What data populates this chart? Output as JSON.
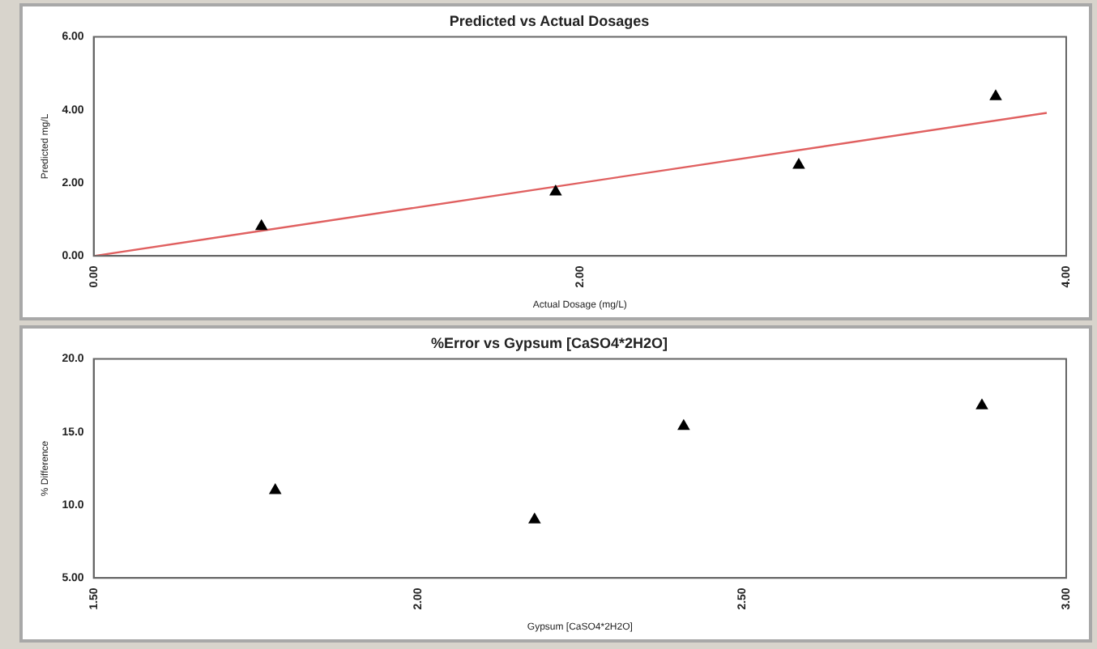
{
  "chart_data": [
    {
      "type": "scatter",
      "title": "Predicted vs Actual Dosages",
      "xlabel": "Actual Dosage (mg/L)",
      "ylabel": "Predicted mg/L",
      "xlim": [
        0,
        4
      ],
      "xticks": [
        {
          "value": 0,
          "label": "0.00"
        },
        {
          "value": 2,
          "label": "2.00"
        },
        {
          "value": 4,
          "label": "4.00"
        }
      ],
      "ylim": [
        0,
        6
      ],
      "yticks": [
        {
          "value": 0,
          "label": "0.00"
        },
        {
          "value": 2,
          "label": "2.00"
        },
        {
          "value": 4,
          "label": "4.00"
        },
        {
          "value": 6,
          "label": "6.00"
        }
      ],
      "grid": false,
      "legend": false,
      "series": [
        {
          "type": "scatter",
          "marker": "triangle",
          "color": "#000000",
          "x": [
            0.69,
            1.9,
            2.9,
            3.71
          ],
          "values": [
            0.81,
            1.76,
            2.49,
            4.37
          ]
        },
        {
          "type": "line",
          "marker": "none",
          "line_style": "solid",
          "color": "#e06060",
          "x": [
            0,
            3.92
          ],
          "values": [
            0,
            3.92
          ]
        }
      ]
    },
    {
      "type": "scatter",
      "title": "%Error vs Gypsum [CaSO4*2H2O]",
      "xlabel": "Gypsum [CaSO4*2H2O]",
      "ylabel": "% Difference",
      "xlim": [
        1.5,
        3
      ],
      "xticks": [
        {
          "value": 1.5,
          "label": "1.50"
        },
        {
          "value": 2,
          "label": "2.00"
        },
        {
          "value": 2.5,
          "label": "2.50"
        },
        {
          "value": 3,
          "label": "3.00"
        }
      ],
      "ylim": [
        5,
        20
      ],
      "yticks": [
        {
          "value": 5,
          "label": "5.00"
        },
        {
          "value": 10,
          "label": "10.0"
        },
        {
          "value": 15,
          "label": "15.0"
        },
        {
          "value": 20,
          "label": "20.0"
        }
      ],
      "grid": false,
      "legend": false,
      "series": [
        {
          "type": "scatter",
          "marker": "triangle",
          "color": "#000000",
          "x": [
            1.78,
            2.18,
            2.41,
            2.87
          ],
          "values": [
            11.0,
            9.0,
            15.4,
            16.8
          ]
        }
      ]
    }
  ]
}
